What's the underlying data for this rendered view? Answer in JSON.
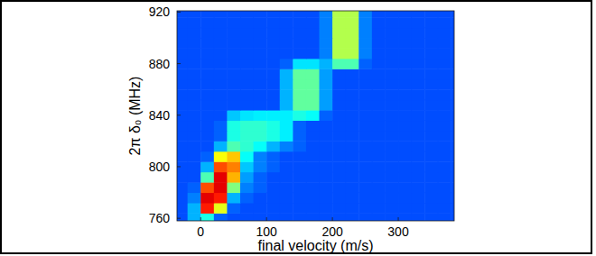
{
  "chart_data": {
    "type": "heatmap",
    "xlabel": "final velocity (m/s)",
    "ylabel": "2π δ₀ (MHz)",
    "xlim": [
      -36,
      385
    ],
    "ylim": [
      758,
      921
    ],
    "xticks": [
      0,
      100,
      200,
      300
    ],
    "yticks": [
      760,
      800,
      840,
      880,
      920
    ],
    "clim": [
      0,
      1
    ],
    "x_edges": [
      -40,
      -20,
      0,
      20,
      40,
      60,
      80,
      100,
      120,
      140,
      160,
      180,
      200,
      220,
      240,
      260,
      280,
      300,
      320,
      340,
      360,
      380,
      400
    ],
    "y_edges": [
      756,
      764,
      772,
      780,
      788,
      796,
      804,
      812,
      820,
      828,
      836,
      844,
      852,
      860,
      868,
      876,
      884,
      892,
      900,
      908,
      916,
      924
    ],
    "cells": [
      [
        0.2,
        0.3,
        0.4,
        0.22,
        0.2,
        0.2,
        0.2,
        0.2,
        0.2,
        0.2,
        0.2,
        0.2,
        0.2,
        0.2,
        0.2,
        0.2,
        0.2,
        0.2,
        0.2,
        0.2,
        0.2,
        0.2
      ],
      [
        0.2,
        0.3,
        0.85,
        0.6,
        0.22,
        0.2,
        0.2,
        0.2,
        0.2,
        0.2,
        0.2,
        0.2,
        0.2,
        0.2,
        0.2,
        0.2,
        0.2,
        0.2,
        0.2,
        0.2,
        0.2,
        0.2
      ],
      [
        0.2,
        0.25,
        0.9,
        0.85,
        0.3,
        0.22,
        0.2,
        0.2,
        0.2,
        0.2,
        0.2,
        0.2,
        0.2,
        0.2,
        0.2,
        0.2,
        0.2,
        0.2,
        0.2,
        0.2,
        0.2,
        0.2
      ],
      [
        0.2,
        0.22,
        0.8,
        0.9,
        0.5,
        0.25,
        0.22,
        0.2,
        0.2,
        0.2,
        0.2,
        0.2,
        0.2,
        0.2,
        0.2,
        0.2,
        0.2,
        0.2,
        0.2,
        0.2,
        0.2,
        0.2
      ],
      [
        0.2,
        0.2,
        0.45,
        0.9,
        0.7,
        0.28,
        0.22,
        0.2,
        0.2,
        0.2,
        0.2,
        0.2,
        0.2,
        0.2,
        0.2,
        0.2,
        0.2,
        0.2,
        0.2,
        0.2,
        0.2,
        0.2
      ],
      [
        0.2,
        0.2,
        0.3,
        0.8,
        0.75,
        0.32,
        0.25,
        0.22,
        0.2,
        0.2,
        0.2,
        0.2,
        0.2,
        0.2,
        0.2,
        0.2,
        0.2,
        0.2,
        0.2,
        0.2,
        0.2,
        0.2
      ],
      [
        0.2,
        0.2,
        0.22,
        0.62,
        0.68,
        0.38,
        0.25,
        0.22,
        0.2,
        0.2,
        0.2,
        0.2,
        0.2,
        0.2,
        0.2,
        0.2,
        0.2,
        0.2,
        0.2,
        0.2,
        0.2,
        0.2
      ],
      [
        0.2,
        0.2,
        0.2,
        0.3,
        0.45,
        0.42,
        0.38,
        0.3,
        0.25,
        0.22,
        0.2,
        0.2,
        0.2,
        0.2,
        0.2,
        0.2,
        0.2,
        0.2,
        0.2,
        0.2,
        0.2,
        0.2
      ],
      [
        0.2,
        0.2,
        0.2,
        0.22,
        0.4,
        0.42,
        0.42,
        0.4,
        0.36,
        0.22,
        0.2,
        0.2,
        0.2,
        0.2,
        0.2,
        0.2,
        0.2,
        0.2,
        0.2,
        0.2,
        0.2,
        0.2
      ],
      [
        0.2,
        0.2,
        0.2,
        0.22,
        0.4,
        0.42,
        0.42,
        0.4,
        0.36,
        0.22,
        0.2,
        0.2,
        0.2,
        0.2,
        0.2,
        0.2,
        0.2,
        0.2,
        0.2,
        0.2,
        0.2,
        0.2
      ],
      [
        0.2,
        0.2,
        0.2,
        0.2,
        0.32,
        0.35,
        0.36,
        0.36,
        0.36,
        0.4,
        0.38,
        0.22,
        0.2,
        0.2,
        0.2,
        0.2,
        0.2,
        0.2,
        0.2,
        0.2,
        0.2,
        0.2
      ],
      [
        0.2,
        0.2,
        0.2,
        0.2,
        0.2,
        0.2,
        0.2,
        0.2,
        0.3,
        0.47,
        0.47,
        0.28,
        0.2,
        0.2,
        0.2,
        0.2,
        0.2,
        0.2,
        0.2,
        0.2,
        0.2,
        0.2
      ],
      [
        0.2,
        0.2,
        0.2,
        0.2,
        0.2,
        0.2,
        0.2,
        0.2,
        0.3,
        0.47,
        0.47,
        0.28,
        0.2,
        0.2,
        0.2,
        0.2,
        0.2,
        0.2,
        0.2,
        0.2,
        0.2,
        0.2
      ],
      [
        0.2,
        0.2,
        0.2,
        0.2,
        0.2,
        0.2,
        0.2,
        0.2,
        0.3,
        0.47,
        0.47,
        0.28,
        0.2,
        0.2,
        0.2,
        0.2,
        0.2,
        0.2,
        0.2,
        0.2,
        0.2,
        0.2
      ],
      [
        0.2,
        0.2,
        0.2,
        0.2,
        0.2,
        0.2,
        0.2,
        0.2,
        0.3,
        0.47,
        0.47,
        0.28,
        0.2,
        0.2,
        0.2,
        0.2,
        0.2,
        0.2,
        0.2,
        0.2,
        0.2,
        0.2
      ],
      [
        0.2,
        0.2,
        0.2,
        0.2,
        0.2,
        0.2,
        0.2,
        0.2,
        0.22,
        0.35,
        0.35,
        0.3,
        0.45,
        0.45,
        0.22,
        0.2,
        0.2,
        0.2,
        0.2,
        0.2,
        0.2,
        0.2
      ],
      [
        0.2,
        0.2,
        0.2,
        0.2,
        0.2,
        0.2,
        0.2,
        0.2,
        0.2,
        0.2,
        0.2,
        0.25,
        0.55,
        0.55,
        0.25,
        0.2,
        0.2,
        0.2,
        0.2,
        0.2,
        0.2,
        0.2
      ],
      [
        0.2,
        0.2,
        0.2,
        0.2,
        0.2,
        0.2,
        0.2,
        0.2,
        0.2,
        0.2,
        0.2,
        0.25,
        0.55,
        0.55,
        0.25,
        0.2,
        0.2,
        0.2,
        0.2,
        0.2,
        0.2,
        0.2
      ],
      [
        0.2,
        0.2,
        0.2,
        0.2,
        0.2,
        0.2,
        0.2,
        0.2,
        0.2,
        0.2,
        0.2,
        0.25,
        0.55,
        0.55,
        0.25,
        0.2,
        0.2,
        0.2,
        0.2,
        0.2,
        0.2,
        0.2
      ],
      [
        0.2,
        0.2,
        0.2,
        0.2,
        0.2,
        0.2,
        0.2,
        0.2,
        0.2,
        0.2,
        0.2,
        0.25,
        0.55,
        0.55,
        0.25,
        0.2,
        0.2,
        0.2,
        0.2,
        0.2,
        0.2,
        0.2
      ],
      [
        0.2,
        0.2,
        0.2,
        0.2,
        0.2,
        0.2,
        0.2,
        0.2,
        0.2,
        0.2,
        0.2,
        0.25,
        0.55,
        0.55,
        0.25,
        0.2,
        0.2,
        0.2,
        0.2,
        0.2,
        0.2,
        0.2
      ]
    ]
  }
}
